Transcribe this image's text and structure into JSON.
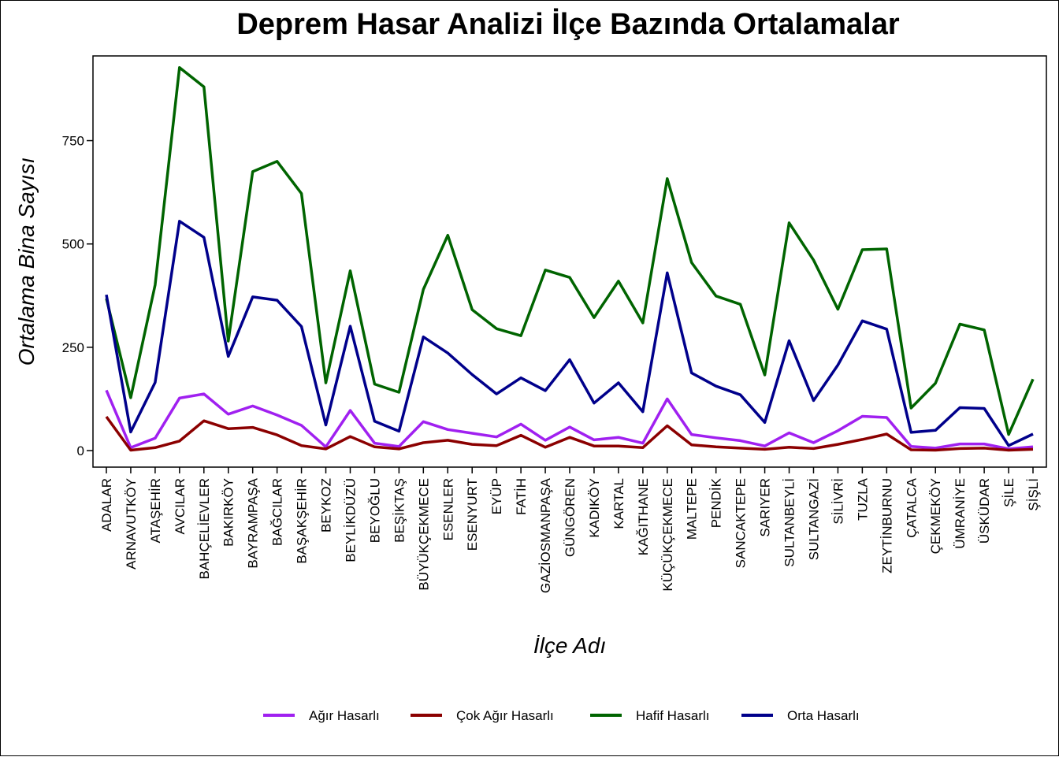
{
  "chart_data": {
    "type": "line",
    "title": "Deprem Hasar Analizi İlçe Bazında Ortalamalar",
    "xlabel": "İlçe Adı",
    "ylabel": "Ortalama Bina Sayısı",
    "ylim": [
      -40,
      955
    ],
    "yticks": [
      0,
      250,
      500,
      750
    ],
    "grid": false,
    "legend_position": "bottom",
    "categories": [
      "ADALAR",
      "ARNAVUTKÖY",
      "ATAŞEHİR",
      "AVCILAR",
      "BAHÇELİEVLER",
      "BAKIRKÖY",
      "BAYRAMPAŞA",
      "BAĞCILAR",
      "BAŞAKŞEHİR",
      "BEYKOZ",
      "BEYLİKDÜZÜ",
      "BEYOĞLU",
      "BEŞİKTAŞ",
      "BÜYÜKÇEKMECE",
      "ESENLER",
      "ESENYURT",
      "EYÜP",
      "FATİH",
      "GAZİOSMANPAŞA",
      "GÜNGÖREN",
      "KADIKÖY",
      "KARTAL",
      "KAĞITHANE",
      "KÜÇÜKÇEKMECE",
      "MALTEPE",
      "PENDİK",
      "SANCAKTEPE",
      "SARIYER",
      "SULTANBEYLİ",
      "SULTANGAZİ",
      "SİLİVRİ",
      "TUZLA",
      "ZEYTİNBURNU",
      "ÇATALCA",
      "ÇEKMEKÖY",
      "ÜMRANİYE",
      "ÜSKÜDAR",
      "ŞİLE",
      "ŞİŞLİ"
    ],
    "series": [
      {
        "name": "Ağır Hasarlı",
        "color": "#a020f0",
        "values": [
          146,
          7,
          30,
          127,
          137,
          88,
          108,
          86,
          61,
          9,
          97,
          18,
          10,
          70,
          51,
          42,
          33,
          64,
          25,
          57,
          26,
          32,
          18,
          125,
          39,
          31,
          24,
          11,
          43,
          19,
          48,
          83,
          80,
          10,
          6,
          16,
          16,
          4,
          9
        ]
      },
      {
        "name": "Çok Ağır Hasarlı",
        "color": "#8b0000",
        "values": [
          82,
          1,
          7,
          23,
          72,
          53,
          56,
          38,
          12,
          4,
          34,
          9,
          4,
          19,
          25,
          15,
          12,
          37,
          8,
          32,
          11,
          11,
          7,
          60,
          14,
          9,
          6,
          3,
          8,
          5,
          15,
          27,
          40,
          2,
          1,
          5,
          6,
          1,
          3
        ]
      },
      {
        "name": "Hafif Hasarlı",
        "color": "#006400",
        "values": [
          368,
          128,
          401,
          927,
          880,
          265,
          675,
          700,
          622,
          164,
          435,
          161,
          141,
          390,
          521,
          341,
          295,
          278,
          437,
          419,
          322,
          410,
          309,
          658,
          455,
          374,
          354,
          183,
          551,
          461,
          342,
          486,
          488,
          103,
          163,
          306,
          292,
          39,
          173
        ]
      },
      {
        "name": "Orta Hasarlı",
        "color": "#00008b",
        "values": [
          377,
          45,
          165,
          555,
          516,
          228,
          372,
          364,
          300,
          62,
          301,
          71,
          47,
          275,
          236,
          184,
          137,
          176,
          145,
          220,
          115,
          164,
          94,
          430,
          188,
          156,
          135,
          68,
          266,
          121,
          207,
          314,
          294,
          44,
          49,
          104,
          102,
          12,
          40
        ]
      }
    ]
  }
}
